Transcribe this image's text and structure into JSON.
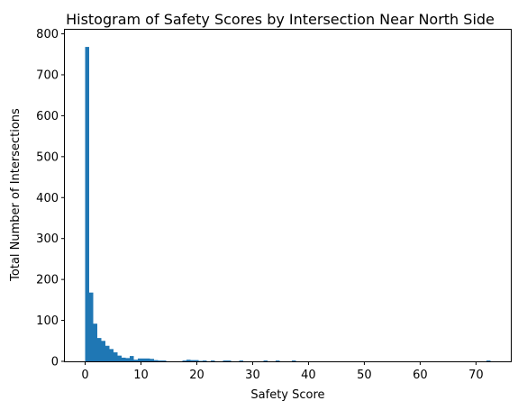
{
  "chart_data": {
    "type": "bar",
    "title": "Histogram of Safety Scores by Intersection Near North Side",
    "xlabel": "Safety Score",
    "ylabel": "Total Number of Intersections",
    "xlim": [
      -3.63,
      76.23
    ],
    "ylim": [
      0,
      810
    ],
    "xticks": [
      0,
      10,
      20,
      30,
      40,
      50,
      60,
      70
    ],
    "yticks": [
      0,
      100,
      200,
      300,
      400,
      500,
      600,
      700,
      800
    ],
    "bin_width": 0.726,
    "color": "#1f77b4",
    "grid": false,
    "bins": [
      {
        "x0": 0.0,
        "count": 768
      },
      {
        "x0": 0.726,
        "count": 168
      },
      {
        "x0": 1.452,
        "count": 92
      },
      {
        "x0": 2.178,
        "count": 57
      },
      {
        "x0": 2.904,
        "count": 50
      },
      {
        "x0": 3.63,
        "count": 38
      },
      {
        "x0": 4.356,
        "count": 30
      },
      {
        "x0": 5.082,
        "count": 22
      },
      {
        "x0": 5.808,
        "count": 14
      },
      {
        "x0": 6.534,
        "count": 9
      },
      {
        "x0": 7.26,
        "count": 8
      },
      {
        "x0": 7.986,
        "count": 13
      },
      {
        "x0": 8.712,
        "count": 4
      },
      {
        "x0": 9.438,
        "count": 7
      },
      {
        "x0": 10.164,
        "count": 7
      },
      {
        "x0": 10.89,
        "count": 7
      },
      {
        "x0": 11.616,
        "count": 6
      },
      {
        "x0": 12.342,
        "count": 3
      },
      {
        "x0": 13.068,
        "count": 2
      },
      {
        "x0": 13.794,
        "count": 2
      },
      {
        "x0": 17.424,
        "count": 2
      },
      {
        "x0": 18.15,
        "count": 4
      },
      {
        "x0": 18.876,
        "count": 3
      },
      {
        "x0": 19.602,
        "count": 3
      },
      {
        "x0": 20.328,
        "count": 1
      },
      {
        "x0": 21.054,
        "count": 2
      },
      {
        "x0": 22.506,
        "count": 2
      },
      {
        "x0": 24.684,
        "count": 2
      },
      {
        "x0": 25.41,
        "count": 2
      },
      {
        "x0": 27.588,
        "count": 2
      },
      {
        "x0": 31.944,
        "count": 2
      },
      {
        "x0": 34.122,
        "count": 2
      },
      {
        "x0": 37.026,
        "count": 2
      },
      {
        "x0": 71.874,
        "count": 2
      }
    ]
  }
}
